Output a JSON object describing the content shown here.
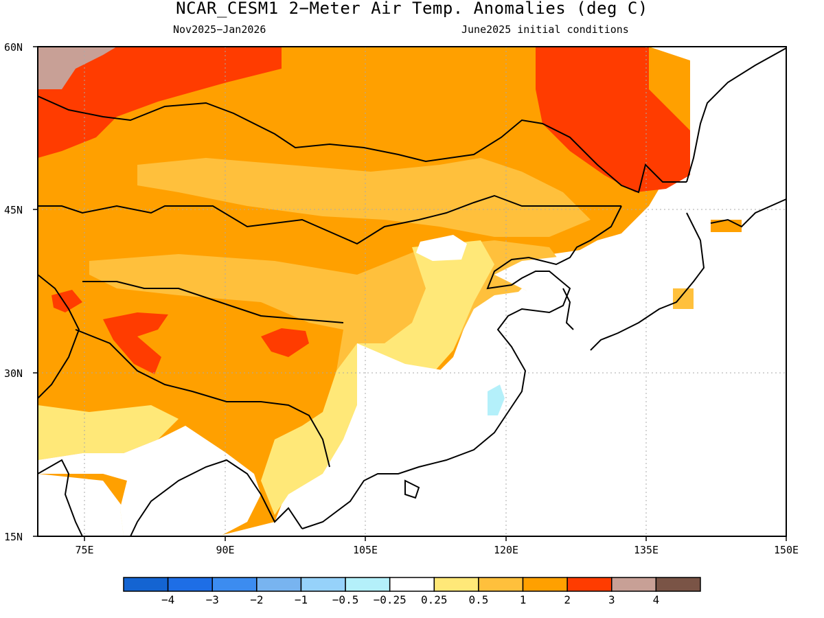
{
  "title": "NCAR_CESM1 2−Meter Air Temp. Anomalies (deg C)",
  "subtitle_left": "Nov2025−Jan2026",
  "subtitle_right": "June2025 initial conditions",
  "lat_labels": [
    "60N",
    "45N",
    "30N",
    "15N"
  ],
  "lon_labels": [
    "75E",
    "90E",
    "105E",
    "120E",
    "135E",
    "150E"
  ],
  "colorbar": {
    "colors": [
      "#1464d2",
      "#1e6ee6",
      "#3c8cf0",
      "#78b4f0",
      "#96d2fa",
      "#b4f0fa",
      "#ffffff",
      "#ffe878",
      "#ffc03c",
      "#ffa000",
      "#ff3c00",
      "#c8a096",
      "#7a5446"
    ],
    "labels": [
      "−4",
      "−3",
      "−2",
      "−1",
      "−0.5",
      "−0.25",
      "0.25",
      "0.5",
      "1",
      "2",
      "3",
      "4"
    ]
  }
}
